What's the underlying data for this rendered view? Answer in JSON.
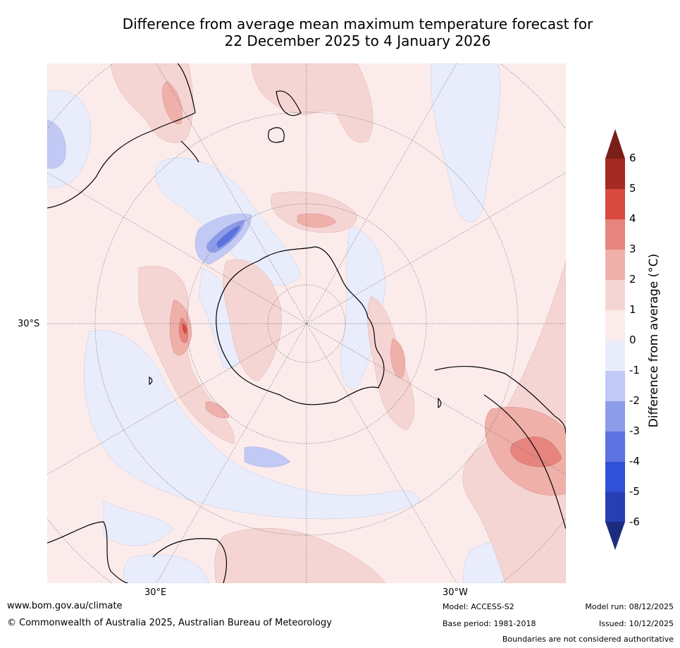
{
  "title": {
    "line1": "Difference from average mean maximum temperature forecast for",
    "line2": "22 December 2025 to 4 January 2026"
  },
  "map": {
    "projection": "south-polar-stereographic",
    "lat_labels": [
      "30°S"
    ],
    "lon_labels": [
      "30°E",
      "30°W"
    ]
  },
  "colorbar": {
    "title": "Difference from average (°C)",
    "ticks": [
      "6",
      "5",
      "4",
      "3",
      "2",
      "1",
      "0",
      "-1",
      "-2",
      "-3",
      "-4",
      "-5",
      "-6"
    ],
    "bins": [
      {
        "range": "5 to 6",
        "color": "#a52a23"
      },
      {
        "range": "4 to 5",
        "color": "#d8493f"
      },
      {
        "range": "3 to 4",
        "color": "#e6847d"
      },
      {
        "range": "2 to 3",
        "color": "#efb0aa"
      },
      {
        "range": "1 to 2",
        "color": "#f5d5d3"
      },
      {
        "range": "0 to 1",
        "color": "#fbeceb"
      },
      {
        "range": "-1 to 0",
        "color": "#e8ecfb"
      },
      {
        "range": "-2 to -1",
        "color": "#c1c9f4"
      },
      {
        "range": "-3 to -2",
        "color": "#8c9ce8"
      },
      {
        "range": "-4 to -3",
        "color": "#5b72e0"
      },
      {
        "range": "-5 to -4",
        "color": "#3150d8"
      },
      {
        "range": "-6 to -5",
        "color": "#263fb3"
      }
    ],
    "over_color": "#7a1e18",
    "under_color": "#1e2c80"
  },
  "footer": {
    "url": "www.bom.gov.au/climate",
    "copyright": "© Commonwealth of Australia 2025, Australian Bureau of Meteorology",
    "model": "Model: ACCESS-S2",
    "base_period": "Base period: 1981-2018",
    "model_run": "Model run: 08/12/2025",
    "issued": "Issued: 10/12/2025",
    "disclaimer": "Boundaries are not considered authoritative"
  }
}
